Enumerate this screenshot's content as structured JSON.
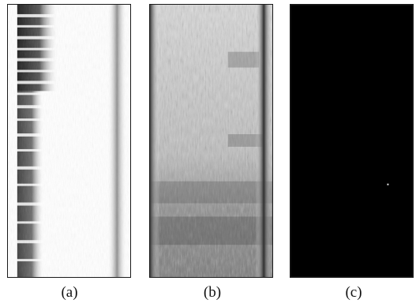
{
  "figure": {
    "panels": [
      {
        "caption": "(a)",
        "content": "sparse-texture"
      },
      {
        "caption": "(b)",
        "content": "dense-texture"
      },
      {
        "caption": "(c)",
        "content": "dark-field"
      }
    ]
  },
  "colors": {
    "frame": "#1a1a1a",
    "ink": "#111111",
    "field_dark": "#000000",
    "speckle": "#e8e8e8"
  }
}
